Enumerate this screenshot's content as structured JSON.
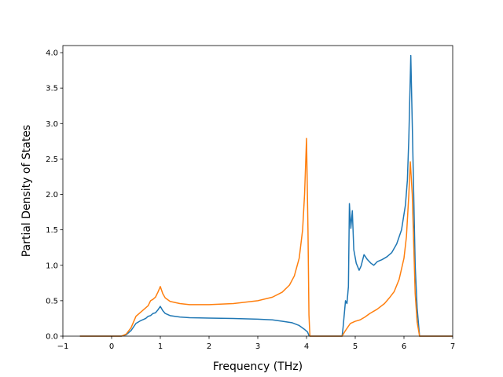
{
  "chart_data": {
    "type": "line",
    "title": "",
    "xlabel": "Frequency (THz)",
    "ylabel": "Partial Density of States",
    "xlim": [
      -1,
      7
    ],
    "ylim": [
      0,
      4.1
    ],
    "x_ticks": [
      -1,
      0,
      1,
      2,
      3,
      4,
      5,
      6,
      7
    ],
    "y_ticks": [
      0.0,
      0.5,
      1.0,
      1.5,
      2.0,
      2.5,
      3.0,
      3.5,
      4.0
    ],
    "x_tick_labels": [
      "−1",
      "0",
      "1",
      "2",
      "3",
      "4",
      "5",
      "6",
      "7"
    ],
    "y_tick_labels": [
      "0.0",
      "0.5",
      "1.0",
      "1.5",
      "2.0",
      "2.5",
      "3.0",
      "3.5",
      "4.0"
    ],
    "grid": false,
    "legend": "none",
    "series": [
      {
        "color": "#1f77b4",
        "points": [
          [
            -0.65,
            0.0
          ],
          [
            0.0,
            0.0
          ],
          [
            0.2,
            0.0
          ],
          [
            0.3,
            0.02
          ],
          [
            0.4,
            0.08
          ],
          [
            0.5,
            0.18
          ],
          [
            0.6,
            0.22
          ],
          [
            0.7,
            0.25
          ],
          [
            0.75,
            0.28
          ],
          [
            0.8,
            0.29
          ],
          [
            0.85,
            0.32
          ],
          [
            0.9,
            0.33
          ],
          [
            0.95,
            0.37
          ],
          [
            1.0,
            0.42
          ],
          [
            1.05,
            0.36
          ],
          [
            1.1,
            0.32
          ],
          [
            1.2,
            0.29
          ],
          [
            1.4,
            0.27
          ],
          [
            1.6,
            0.26
          ],
          [
            2.0,
            0.255
          ],
          [
            2.5,
            0.25
          ],
          [
            3.0,
            0.24
          ],
          [
            3.3,
            0.23
          ],
          [
            3.5,
            0.21
          ],
          [
            3.7,
            0.19
          ],
          [
            3.85,
            0.15
          ],
          [
            3.95,
            0.1
          ],
          [
            4.02,
            0.06
          ],
          [
            4.05,
            0.01
          ],
          [
            4.07,
            0.0
          ],
          [
            4.5,
            0.0
          ],
          [
            4.73,
            0.0
          ],
          [
            4.75,
            0.12
          ],
          [
            4.8,
            0.5
          ],
          [
            4.83,
            0.46
          ],
          [
            4.86,
            0.7
          ],
          [
            4.88,
            1.87
          ],
          [
            4.91,
            1.52
          ],
          [
            4.94,
            1.77
          ],
          [
            4.97,
            1.22
          ],
          [
            5.02,
            1.03
          ],
          [
            5.08,
            0.93
          ],
          [
            5.12,
            0.99
          ],
          [
            5.18,
            1.15
          ],
          [
            5.25,
            1.08
          ],
          [
            5.32,
            1.03
          ],
          [
            5.38,
            1.0
          ],
          [
            5.45,
            1.05
          ],
          [
            5.55,
            1.08
          ],
          [
            5.65,
            1.12
          ],
          [
            5.75,
            1.18
          ],
          [
            5.85,
            1.3
          ],
          [
            5.95,
            1.5
          ],
          [
            6.03,
            1.85
          ],
          [
            6.07,
            2.2
          ],
          [
            6.1,
            2.8
          ],
          [
            6.14,
            3.96
          ],
          [
            6.17,
            3.0
          ],
          [
            6.2,
            2.0
          ],
          [
            6.23,
            1.0
          ],
          [
            6.27,
            0.4
          ],
          [
            6.32,
            0.0
          ],
          [
            7.0,
            0.0
          ]
        ]
      },
      {
        "color": "#ff7f0e",
        "points": [
          [
            -0.65,
            0.0
          ],
          [
            0.0,
            0.0
          ],
          [
            0.2,
            0.0
          ],
          [
            0.3,
            0.03
          ],
          [
            0.4,
            0.12
          ],
          [
            0.5,
            0.28
          ],
          [
            0.6,
            0.34
          ],
          [
            0.7,
            0.4
          ],
          [
            0.75,
            0.43
          ],
          [
            0.8,
            0.5
          ],
          [
            0.85,
            0.52
          ],
          [
            0.9,
            0.55
          ],
          [
            0.95,
            0.62
          ],
          [
            1.0,
            0.7
          ],
          [
            1.05,
            0.6
          ],
          [
            1.1,
            0.54
          ],
          [
            1.2,
            0.49
          ],
          [
            1.4,
            0.46
          ],
          [
            1.6,
            0.445
          ],
          [
            2.0,
            0.445
          ],
          [
            2.5,
            0.46
          ],
          [
            3.0,
            0.5
          ],
          [
            3.3,
            0.55
          ],
          [
            3.5,
            0.62
          ],
          [
            3.65,
            0.72
          ],
          [
            3.75,
            0.85
          ],
          [
            3.85,
            1.1
          ],
          [
            3.92,
            1.5
          ],
          [
            3.96,
            2.0
          ],
          [
            4.0,
            2.79
          ],
          [
            4.03,
            1.5
          ],
          [
            4.05,
            0.3
          ],
          [
            4.07,
            0.0
          ],
          [
            4.5,
            0.0
          ],
          [
            4.73,
            0.0
          ],
          [
            4.8,
            0.08
          ],
          [
            4.9,
            0.18
          ],
          [
            5.0,
            0.21
          ],
          [
            5.1,
            0.23
          ],
          [
            5.2,
            0.27
          ],
          [
            5.3,
            0.32
          ],
          [
            5.45,
            0.38
          ],
          [
            5.6,
            0.46
          ],
          [
            5.7,
            0.54
          ],
          [
            5.8,
            0.63
          ],
          [
            5.9,
            0.8
          ],
          [
            6.0,
            1.1
          ],
          [
            6.05,
            1.4
          ],
          [
            6.1,
            2.0
          ],
          [
            6.13,
            2.46
          ],
          [
            6.17,
            2.0
          ],
          [
            6.2,
            1.3
          ],
          [
            6.23,
            0.6
          ],
          [
            6.27,
            0.2
          ],
          [
            6.32,
            0.0
          ],
          [
            7.0,
            0.0
          ]
        ]
      }
    ]
  }
}
